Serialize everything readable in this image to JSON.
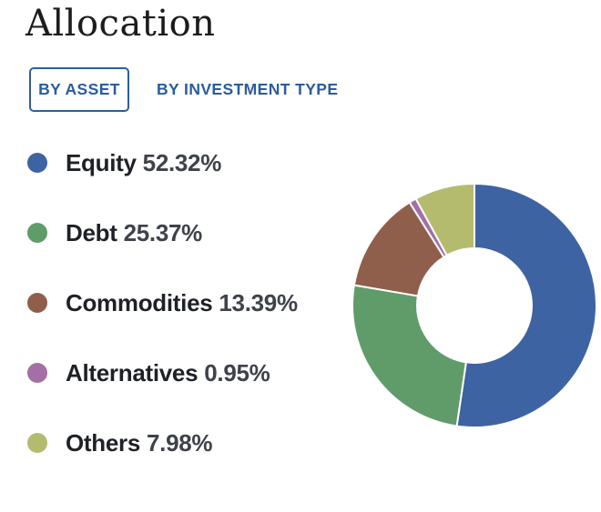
{
  "page": {
    "title": "Allocation"
  },
  "tabs": {
    "active_label": "BY ASSET",
    "inactive_label": "BY INVESTMENT TYPE",
    "accent_color": "#2B5C9D"
  },
  "chart_data": {
    "type": "pie",
    "title": "Allocation",
    "donut": true,
    "inner_radius_ratio": 0.47,
    "start_angle_deg": 0,
    "direction": "clockwise",
    "slice_gap_color": "#ffffff",
    "legend_position": "left",
    "series": [
      {
        "name": "Equity",
        "value": 52.32,
        "display": "52.32%",
        "color": "#3E63A2"
      },
      {
        "name": "Debt",
        "value": 25.37,
        "display": "25.37%",
        "color": "#609C6A"
      },
      {
        "name": "Commodities",
        "value": 13.39,
        "display": "13.39%",
        "color": "#8F5F4B"
      },
      {
        "name": "Alternatives",
        "value": 0.95,
        "display": "0.95%",
        "color": "#A46FA4"
      },
      {
        "name": "Others",
        "value": 7.98,
        "display": "7.98%",
        "color": "#B5BB6E"
      }
    ]
  }
}
